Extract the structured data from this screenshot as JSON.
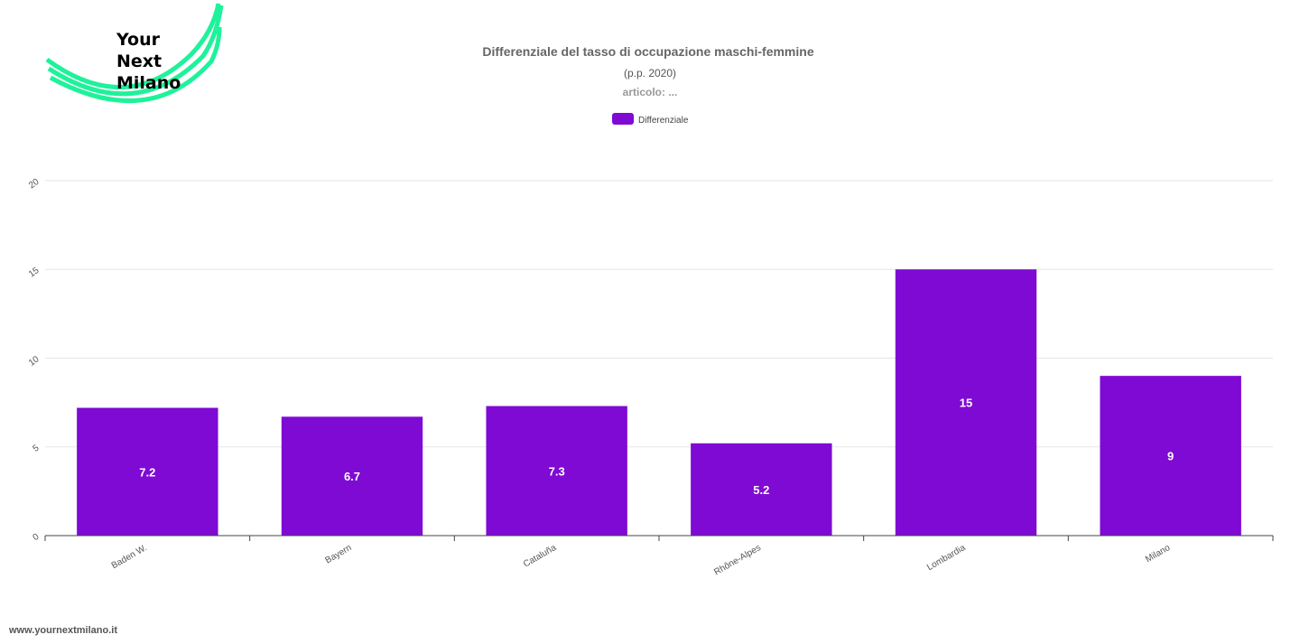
{
  "brand": {
    "logo_text": "Your\nNext\nMilano",
    "accent": "#1ef29a",
    "footer_url": "www.yournextmilano.it"
  },
  "chart_data": {
    "type": "bar",
    "title": "Differenziale del tasso di occupazione maschi-femmine",
    "subtitle": "(p.p. 2020)",
    "subtitle2": "articolo: ...",
    "categories": [
      "Baden W.",
      "Bayern",
      "Cataluña",
      "Rhône-Alpes",
      "Lombardia",
      "Milano"
    ],
    "series": [
      {
        "name": "Differenziale",
        "values": [
          7.2,
          6.7,
          7.3,
          5.2,
          15,
          9
        ],
        "color": "#7f0ad3"
      }
    ],
    "y_ticks": [
      "0",
      "5",
      "10",
      "15",
      "20"
    ],
    "ylim": [
      0,
      20
    ],
    "grid": true,
    "legend_position": "top-center"
  }
}
